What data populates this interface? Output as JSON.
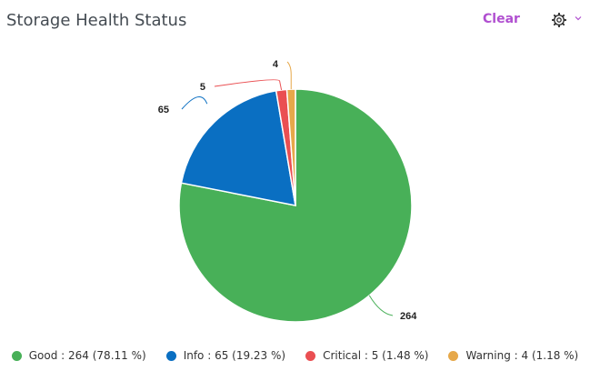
{
  "header": {
    "title": "Storage Health Status",
    "clear_label": "Clear"
  },
  "icons": {
    "settings": "gear-icon",
    "menu": "chevron-down-icon"
  },
  "chart_data": {
    "type": "pie",
    "title": "Storage Health Status",
    "slices": [
      {
        "name": "Good",
        "value": 264,
        "percent": "78.11 %",
        "color": "#48b058",
        "label": "264",
        "legend": "Good : 264 (78.11 %)"
      },
      {
        "name": "Info",
        "value": 65,
        "percent": "19.23 %",
        "color": "#0a6fc2",
        "label": "65",
        "legend": "Info : 65 (19.23 %)"
      },
      {
        "name": "Critical",
        "value": 5,
        "percent": "1.48 %",
        "color": "#ea4f52",
        "label": "5",
        "legend": "Critical : 5 (1.48 %)"
      },
      {
        "name": "Warning",
        "value": 4,
        "percent": "1.18 %",
        "color": "#e6a84a",
        "label": "4",
        "legend": "Warning : 4 (1.18 %)"
      }
    ],
    "legend_position": "bottom"
  }
}
